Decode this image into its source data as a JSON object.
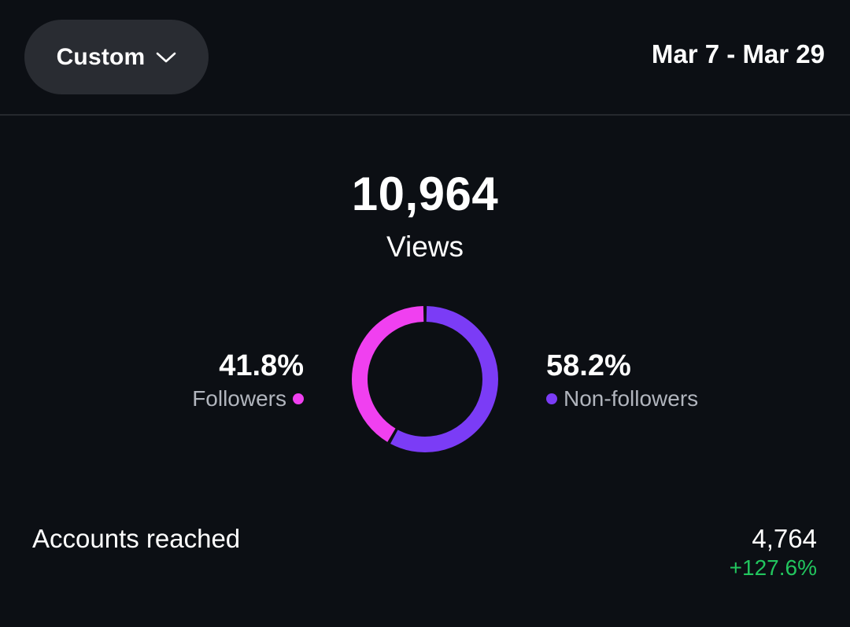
{
  "header": {
    "range_label": "Custom",
    "date_range": "Mar 7 - Mar 29"
  },
  "views": {
    "value": "10,964",
    "label": "Views"
  },
  "audience": {
    "followers": {
      "percent_label": "41.8%",
      "fraction": 0.418,
      "label": "Followers",
      "color": "#f040f0"
    },
    "non_followers": {
      "percent_label": "58.2%",
      "fraction": 0.582,
      "label": "Non-followers",
      "color": "#7b3cf6"
    }
  },
  "metrics": {
    "accounts_reached": {
      "label": "Accounts reached",
      "value": "4,764",
      "change": "+127.6%",
      "change_color": "#22c55e"
    }
  },
  "icons": {
    "chevron": "chevron-down-icon"
  }
}
